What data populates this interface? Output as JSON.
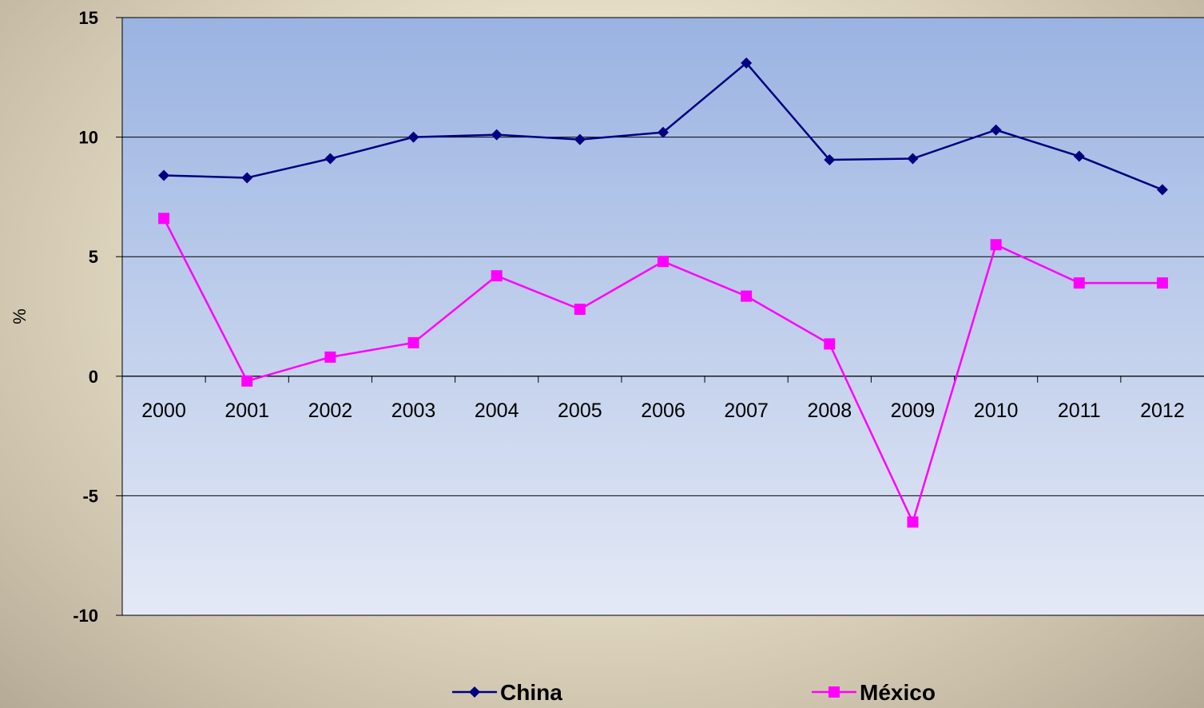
{
  "chart_data": {
    "type": "line",
    "title": "",
    "xlabel": "",
    "ylabel": "%",
    "ylim": [
      -10,
      15
    ],
    "yticks": [
      -10,
      -5,
      0,
      5,
      10,
      15
    ],
    "ytick_labels": [
      "-10",
      "-5",
      "0",
      "5",
      "10",
      "15"
    ],
    "categories": [
      "2000",
      "2001",
      "2002",
      "2003",
      "2004",
      "2005",
      "2006",
      "2007",
      "2008",
      "2009",
      "2010",
      "2011",
      "2012"
    ],
    "grid": true,
    "legend_position": "bottom",
    "series": [
      {
        "name": "China",
        "color": "#000080",
        "marker": "diamond",
        "values": [
          8.4,
          8.3,
          9.1,
          10.0,
          10.1,
          9.9,
          10.2,
          13.1,
          9.05,
          9.1,
          10.3,
          9.2,
          7.8
        ]
      },
      {
        "name": "México",
        "color": "#ff00ff",
        "marker": "square",
        "values": [
          6.6,
          -0.2,
          0.8,
          1.4,
          4.2,
          2.8,
          4.8,
          3.35,
          1.35,
          -6.1,
          5.5,
          3.9,
          3.9
        ]
      }
    ]
  }
}
